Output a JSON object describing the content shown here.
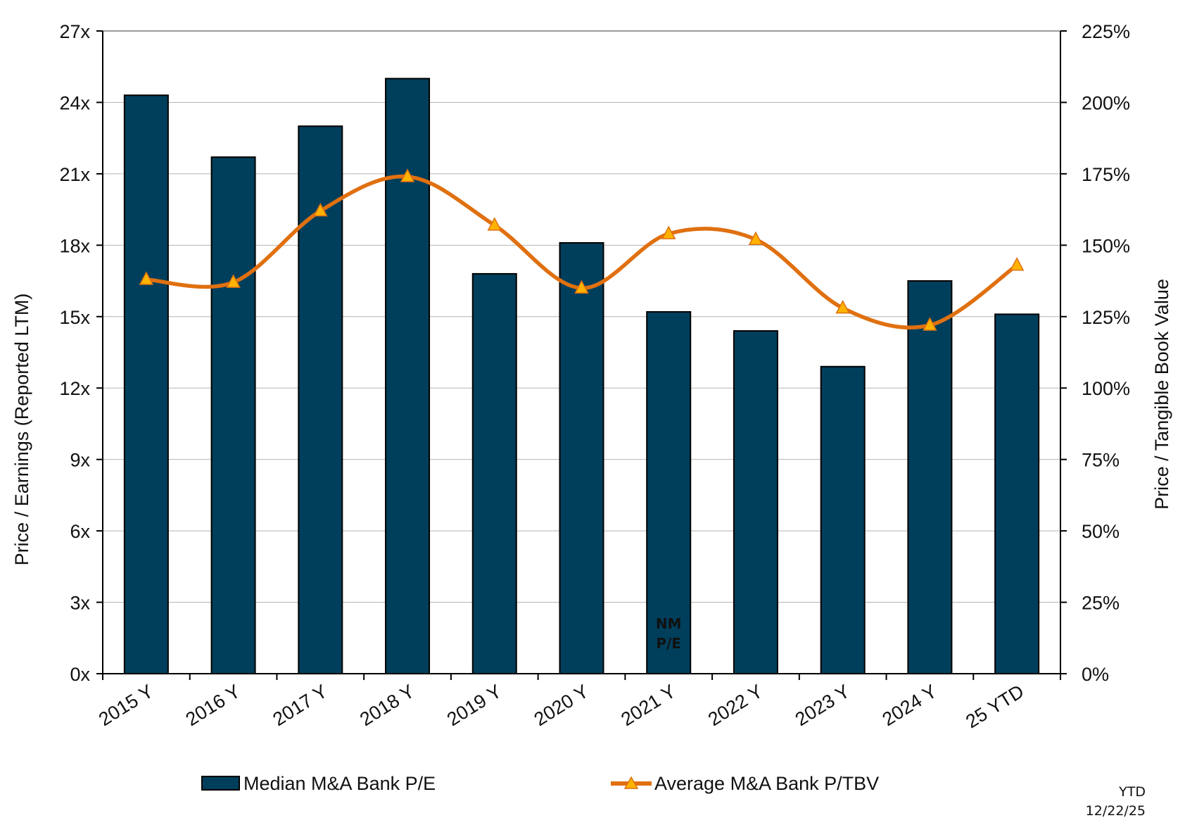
{
  "chart_data": {
    "type": "bar+line",
    "categories": [
      "2015 Y",
      "2016 Y",
      "2017 Y",
      "2018 Y",
      "2019 Y",
      "2020 Y",
      "2021 Y",
      "2022 Y",
      "2023 Y",
      "2024 Y",
      "25 YTD"
    ],
    "series": [
      {
        "name": "Median M&A Bank P/E",
        "type": "bar",
        "axis": "left",
        "color": "#003f5c",
        "values": [
          24.3,
          21.7,
          23.0,
          25.0,
          16.8,
          18.1,
          15.2,
          14.4,
          12.9,
          16.5,
          15.1
        ]
      },
      {
        "name": "Average M&A Bank P/TBV",
        "type": "line",
        "axis": "right",
        "color": "#e07010",
        "marker_color": "#ffb300",
        "values": [
          138,
          137,
          162,
          174,
          157,
          135,
          154,
          152,
          128,
          122,
          143
        ]
      }
    ],
    "left_axis": {
      "label": "Price / Earnings (Reported LTM)",
      "min": 0,
      "max": 27,
      "step": 3,
      "ticks": [
        "0x",
        "3x",
        "6x",
        "9x",
        "12x",
        "15x",
        "18x",
        "21x",
        "24x",
        "27x"
      ]
    },
    "right_axis": {
      "label": "Price / Tangible Book Value",
      "min": 0,
      "max": 225,
      "step": 25,
      "ticks": [
        "0%",
        "25%",
        "50%",
        "75%",
        "100%",
        "125%",
        "150%",
        "175%",
        "200%",
        "225%"
      ]
    },
    "annotations": [
      {
        "category": "2021 Y",
        "text_line1": "NM",
        "text_line2": "P/E"
      }
    ],
    "gridlines": true,
    "legend_position": "bottom"
  },
  "footnote": {
    "line1": "YTD",
    "line2": "12/22/25"
  }
}
